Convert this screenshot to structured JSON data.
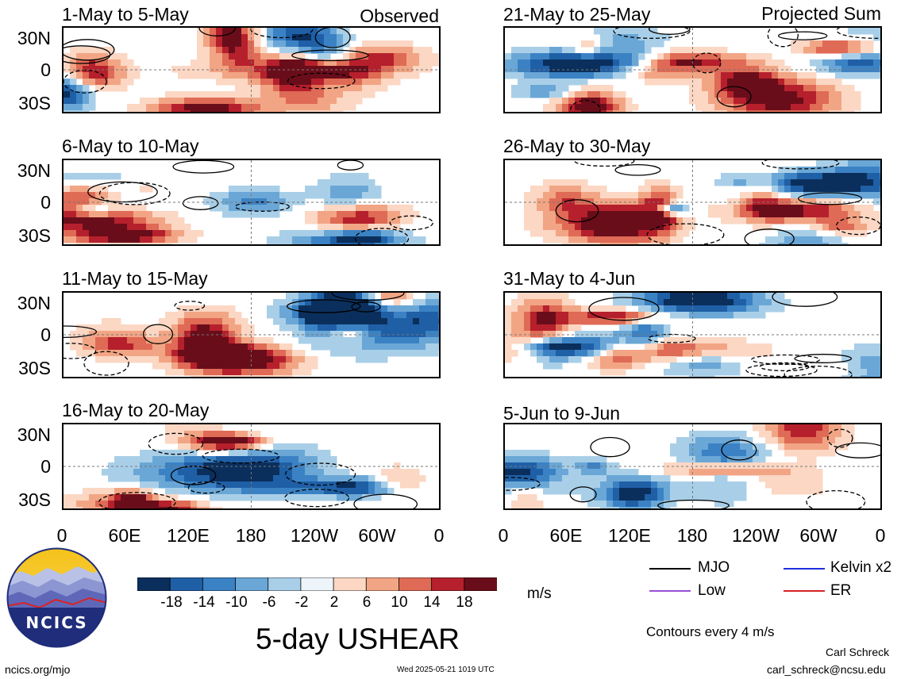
{
  "panels": [
    {
      "title": "1-May to 5-May",
      "tag": "Observed"
    },
    {
      "title": "21-May to 25-May",
      "tag": "Projected Sum"
    },
    {
      "title": "6-May to 10-May",
      "tag": ""
    },
    {
      "title": "26-May to 30-May",
      "tag": ""
    },
    {
      "title": "11-May to 15-May",
      "tag": ""
    },
    {
      "title": "31-May to 4-Jun",
      "tag": ""
    },
    {
      "title": "16-May to 20-May",
      "tag": ""
    },
    {
      "title": "5-Jun to 9-Jun",
      "tag": ""
    }
  ],
  "y_axis_labels": [
    "30N",
    "0",
    "30S"
  ],
  "x_axis_labels": [
    "0",
    "60E",
    "120E",
    "180",
    "120W",
    "60W",
    "0"
  ],
  "colorbar": {
    "labels": [
      "-18",
      "-14",
      "-10",
      "-6",
      "-2",
      "2",
      "6",
      "10",
      "14",
      "18"
    ],
    "colors": [
      "#0b2f5c",
      "#1f5fa6",
      "#3b82c4",
      "#6aa7d6",
      "#a9cfe8",
      "#eef5fa",
      "#fbd7c4",
      "#f2a584",
      "#df6a55",
      "#b5202c",
      "#6a0d1a"
    ],
    "unit": "m/s"
  },
  "legend": {
    "items": [
      {
        "label": "MJO",
        "color": "#000000"
      },
      {
        "label": "Kelvin x2",
        "color": "#1f2fe0"
      },
      {
        "label": "Low",
        "color": "#9b4fd6"
      },
      {
        "label": "ER",
        "color": "#d62222"
      }
    ],
    "contour_note": "Contours every 4 m/s"
  },
  "main_title": "5-day USHEAR",
  "logo_text": "NCICS",
  "footer": {
    "left": "ncics.org/mjo",
    "center": "Wed 2025-05-21 1019 UTC",
    "author": "Carl Schreck",
    "email": "carl_schreck@ncsu.edu"
  }
}
